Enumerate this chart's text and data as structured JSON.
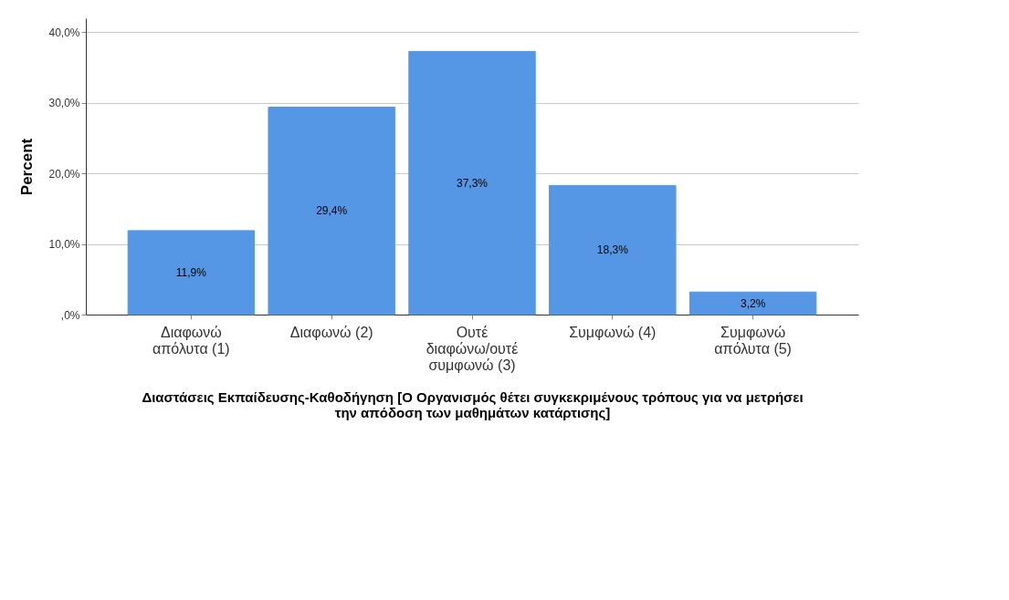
{
  "chart_data": {
    "type": "bar",
    "xlabel": "Διαστάσεις Εκπαίδευσης-Καθοδήγηση [Ο Οργανισμός θέτει συγκεκριμένους τρόπους για να μετρήσει την απόδοση των μαθημάτων κατάρτισης]",
    "ylabel": "Percent",
    "categories": [
      "Διαφωνώ απόλυτα (1)",
      "Διαφωνώ (2)",
      "Ουτέ διαφώνω/ουτέ συμφωνώ (3)",
      "Συμφωνώ (4)",
      "Συμφωνώ απόλυτα (5)"
    ],
    "values": [
      11.9,
      29.4,
      37.3,
      18.3,
      3.2
    ],
    "value_labels": [
      "11,9%",
      "29,4%",
      "37,3%",
      "18,3%",
      "3,2%"
    ],
    "color": "#5597e4",
    "ylim": [
      0,
      42
    ],
    "yticks": [
      {
        "value": 0,
        "label": ",0%"
      },
      {
        "value": 10,
        "label": "10,0%"
      },
      {
        "value": 20,
        "label": "20,0%"
      },
      {
        "value": 30,
        "label": "30,0%"
      },
      {
        "value": 40,
        "label": "40,0%"
      }
    ],
    "grid": "y"
  }
}
